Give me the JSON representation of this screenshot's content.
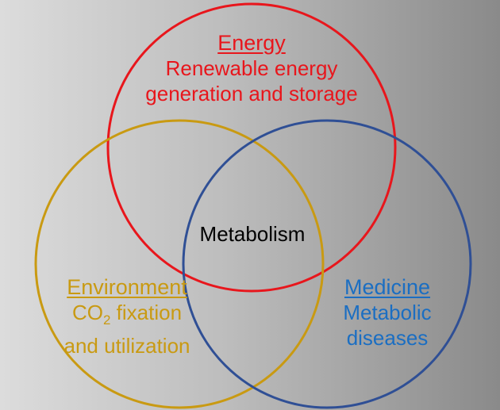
{
  "colors": {
    "energy": "#e8161c",
    "environment": "#c99a12",
    "medicine": "#2f4f95",
    "medicine_text": "#1b6ec2",
    "center_text": "#000000"
  },
  "energy": {
    "heading": "Energy",
    "line1": "Renewable energy",
    "line2": "generation and storage"
  },
  "environment": {
    "heading": "Environment",
    "line1_prefix": "CO",
    "line1_sub": "2",
    "line1_suffix": " fixation",
    "line2": "and utilization"
  },
  "medicine": {
    "heading": "Medicine",
    "line1": "Metabolic",
    "line2": "diseases"
  },
  "center": {
    "label": "Metabolism"
  }
}
